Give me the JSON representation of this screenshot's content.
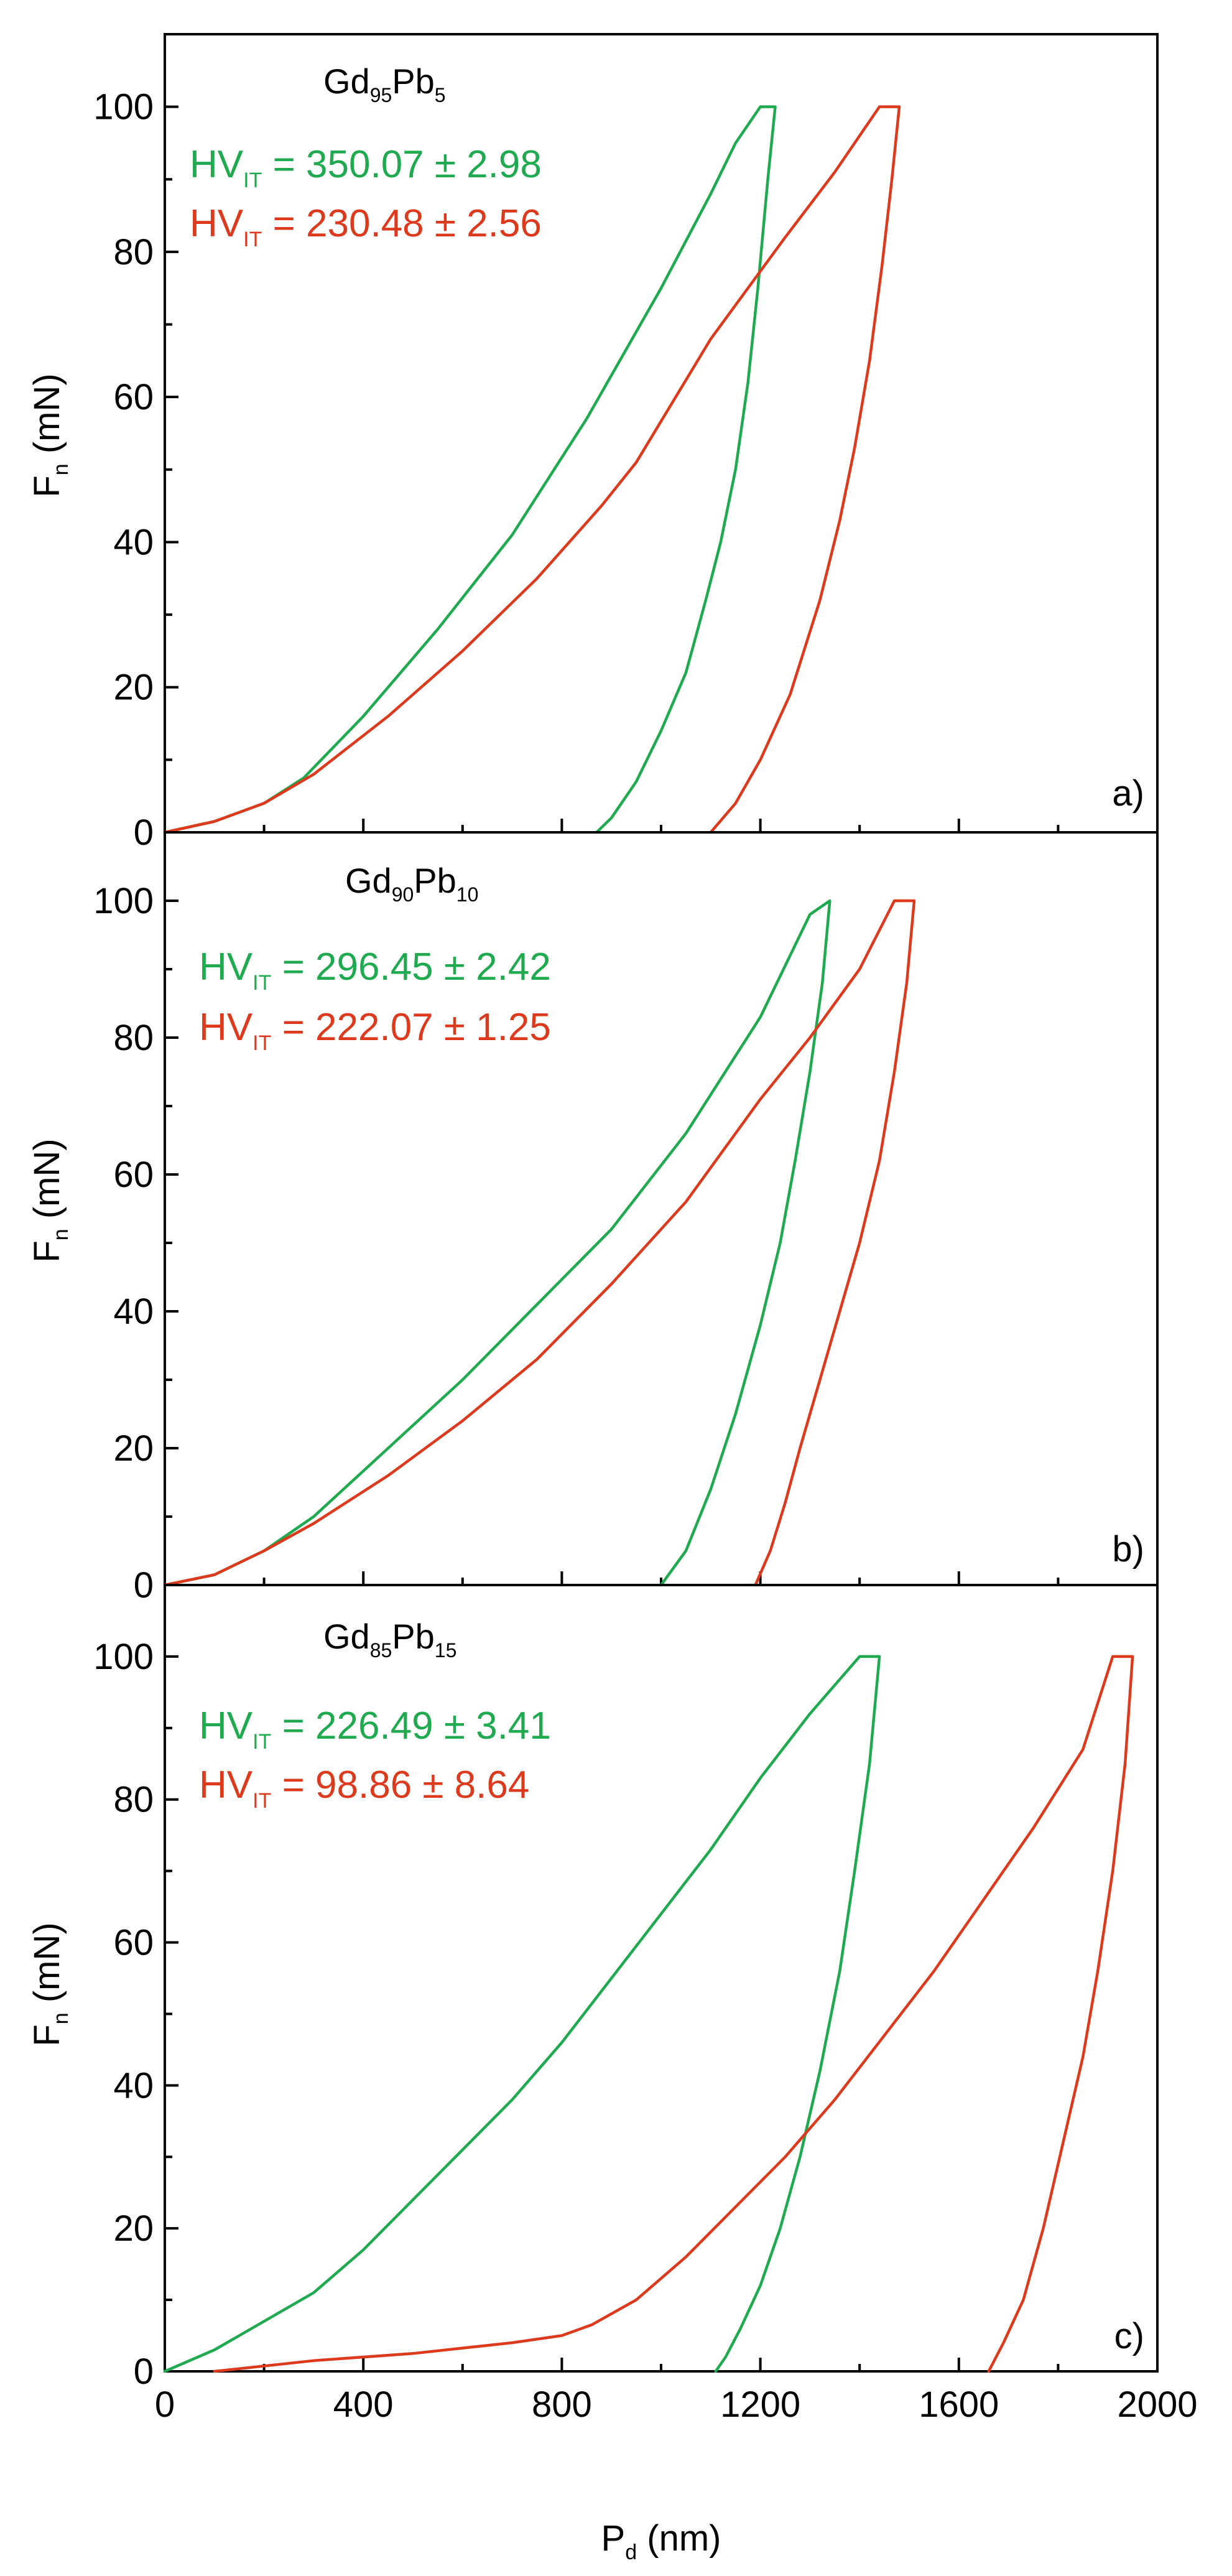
{
  "colors": {
    "green": "#1faa4f",
    "red": "#dd3a1d",
    "axis": "#000000"
  },
  "x_axis": {
    "label": "P",
    "label_sub": "d",
    "label_unit": "(nm)",
    "range": [
      0,
      2000
    ],
    "ticks": [
      "0",
      "400",
      "800",
      "1200",
      "1600",
      "2000"
    ]
  },
  "y_axis": {
    "label": "F",
    "label_sub": "n",
    "label_unit": "(mN)",
    "range": [
      0,
      110
    ],
    "ticks": [
      "0",
      "20",
      "40",
      "60",
      "80",
      "100"
    ]
  },
  "chart_data": [
    {
      "type": "line",
      "panel_label": "a)",
      "title_base1": "Gd",
      "title_sub1": "95",
      "title_base2": "Pb",
      "title_sub2": "5",
      "xlabel": "P_d (nm)",
      "ylabel": "F_n (mN)",
      "xlim": [
        0,
        2000
      ],
      "ylim": [
        0,
        110
      ],
      "series": [
        {
          "name": "green",
          "color": "#1faa4f",
          "hv_prefix": "HV",
          "hv_sub": "IT",
          "hv_value": " = 350.07 ± 2.98",
          "x": [
            0,
            100,
            200,
            280,
            400,
            550,
            700,
            850,
            1000,
            1100,
            1150,
            1200,
            1230,
            1215,
            1195,
            1175,
            1150,
            1120,
            1090,
            1050,
            1000,
            950,
            900,
            870
          ],
          "y": [
            0,
            1.5,
            4,
            7.5,
            16,
            28,
            41,
            57,
            75,
            88,
            95,
            100,
            100,
            90,
            75,
            62,
            50,
            40,
            32,
            22,
            14,
            7,
            2,
            0
          ]
        },
        {
          "name": "red",
          "color": "#dd3a1d",
          "hv_prefix": "HV",
          "hv_sub": "IT",
          "hv_value": " = 230.48 ± 2.56",
          "x": [
            0,
            100,
            200,
            300,
            450,
            600,
            750,
            880,
            950,
            1100,
            1250,
            1350,
            1440,
            1480,
            1465,
            1445,
            1420,
            1390,
            1360,
            1320,
            1260,
            1200,
            1150,
            1100
          ],
          "y": [
            0,
            1.5,
            4,
            8,
            16,
            25,
            35,
            45,
            51,
            68,
            82,
            91,
            100,
            100,
            90,
            78,
            65,
            53,
            43,
            32,
            19,
            10,
            4,
            0
          ]
        }
      ]
    },
    {
      "type": "line",
      "panel_label": "b)",
      "title_base1": "Gd",
      "title_sub1": "90",
      "title_base2": "Pb",
      "title_sub2": "10",
      "xlabel": "P_d (nm)",
      "ylabel": "F_n (mN)",
      "xlim": [
        0,
        2000
      ],
      "ylim": [
        0,
        110
      ],
      "series": [
        {
          "name": "green",
          "color": "#1faa4f",
          "hv_prefix": "HV",
          "hv_sub": "IT",
          "hv_value": " = 296.45 ± 2.42",
          "x": [
            0,
            100,
            200,
            300,
            450,
            600,
            750,
            900,
            1050,
            1200,
            1300,
            1340,
            1325,
            1300,
            1270,
            1240,
            1200,
            1150,
            1100,
            1050,
            1000
          ],
          "y": [
            0,
            1.5,
            5,
            10,
            20,
            30,
            41,
            52,
            66,
            83,
            98,
            100,
            88,
            75,
            62,
            50,
            38,
            25,
            14,
            5,
            0
          ]
        },
        {
          "name": "red",
          "color": "#dd3a1d",
          "hv_prefix": "HV",
          "hv_sub": "IT",
          "hv_value": " = 222.07 ± 1.25",
          "x": [
            0,
            100,
            200,
            300,
            450,
            600,
            750,
            900,
            1050,
            1200,
            1300,
            1400,
            1470,
            1510,
            1495,
            1470,
            1440,
            1400,
            1360,
            1320,
            1280,
            1250,
            1220,
            1190
          ],
          "y": [
            0,
            1.5,
            5,
            9,
            16,
            24,
            33,
            44,
            56,
            71,
            80,
            90,
            100,
            100,
            88,
            75,
            62,
            50,
            40,
            30,
            20,
            12,
            5,
            0
          ]
        }
      ]
    },
    {
      "type": "line",
      "panel_label": "c)",
      "title_base1": "Gd",
      "title_sub1": "85",
      "title_base2": "Pb",
      "title_sub2": "15",
      "xlabel": "P_d (nm)",
      "ylabel": "F_n (mN)",
      "xlim": [
        0,
        2000
      ],
      "ylim": [
        0,
        110
      ],
      "series": [
        {
          "name": "green",
          "color": "#1faa4f",
          "hv_prefix": "HV",
          "hv_sub": "IT",
          "hv_value": " = 226.49 ± 3.41",
          "x": [
            0,
            100,
            200,
            300,
            400,
            500,
            600,
            700,
            800,
            900,
            1000,
            1100,
            1200,
            1300,
            1400,
            1440,
            1420,
            1390,
            1360,
            1320,
            1280,
            1240,
            1200,
            1160,
            1130,
            1110
          ],
          "y": [
            0,
            3,
            7,
            11,
            17,
            24,
            31,
            38,
            46,
            55,
            64,
            73,
            83,
            92,
            100,
            100,
            85,
            70,
            56,
            42,
            30,
            20,
            12,
            6,
            2,
            0
          ]
        },
        {
          "name": "red",
          "color": "#dd3a1d",
          "hv_prefix": "HV",
          "hv_sub": "IT",
          "hv_value": " = 98.86 ± 8.64",
          "x": [
            100,
            300,
            500,
            700,
            800,
            860,
            950,
            1050,
            1150,
            1250,
            1350,
            1450,
            1550,
            1650,
            1750,
            1850,
            1910,
            1950,
            1935,
            1910,
            1880,
            1850,
            1810,
            1770,
            1730,
            1690,
            1660
          ],
          "y": [
            0,
            1.5,
            2.5,
            4,
            5,
            6.5,
            10,
            16,
            23,
            30,
            38,
            47,
            56,
            66,
            76,
            87,
            100,
            100,
            85,
            70,
            56,
            44,
            32,
            20,
            10,
            4,
            0
          ]
        }
      ]
    }
  ]
}
